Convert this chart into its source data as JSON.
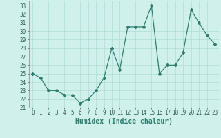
{
  "xlabel": "Humidex (Indice chaleur)",
  "x": [
    0,
    1,
    2,
    3,
    4,
    5,
    6,
    7,
    8,
    9,
    10,
    11,
    12,
    13,
    14,
    15,
    16,
    17,
    18,
    19,
    20,
    21,
    22,
    23
  ],
  "y": [
    25,
    24.5,
    23,
    23,
    22.5,
    22.5,
    21.5,
    22,
    23,
    24.5,
    28,
    25.5,
    30.5,
    30.5,
    30.5,
    33,
    25,
    26,
    26,
    27.5,
    32.5,
    31,
    29.5,
    28.5
  ],
  "line_color": "#2e7d6e",
  "bg_color": "#d0f0ec",
  "grid_color": "#b0ddd8",
  "ylim": [
    21,
    33.5
  ],
  "xlim": [
    -0.5,
    23.5
  ],
  "yticks": [
    21,
    22,
    23,
    24,
    25,
    26,
    27,
    28,
    29,
    30,
    31,
    32,
    33
  ],
  "xticks": [
    0,
    1,
    2,
    3,
    4,
    5,
    6,
    7,
    8,
    9,
    10,
    11,
    12,
    13,
    14,
    15,
    16,
    17,
    18,
    19,
    20,
    21,
    22,
    23
  ],
  "tick_fontsize": 5.5,
  "xlabel_fontsize": 7,
  "marker": "D",
  "markersize": 2.0,
  "linewidth": 0.9
}
